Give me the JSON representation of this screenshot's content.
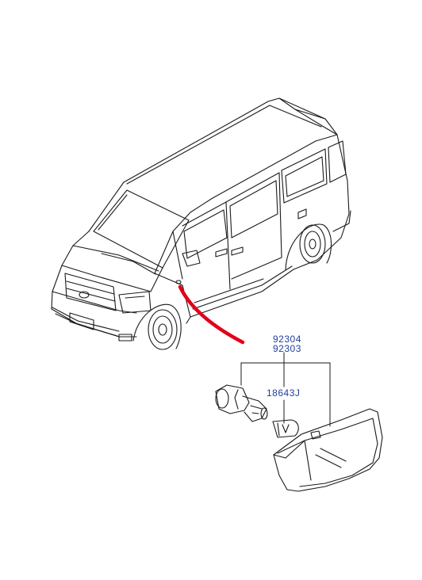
{
  "parts": {
    "side_lamp_lh": "92304",
    "side_lamp_rh": "92303",
    "bulb": "18643J"
  },
  "colors": {
    "line": "#1a1a1a",
    "label": "#1f3f9c",
    "leader_highlight": "#e3001b"
  }
}
